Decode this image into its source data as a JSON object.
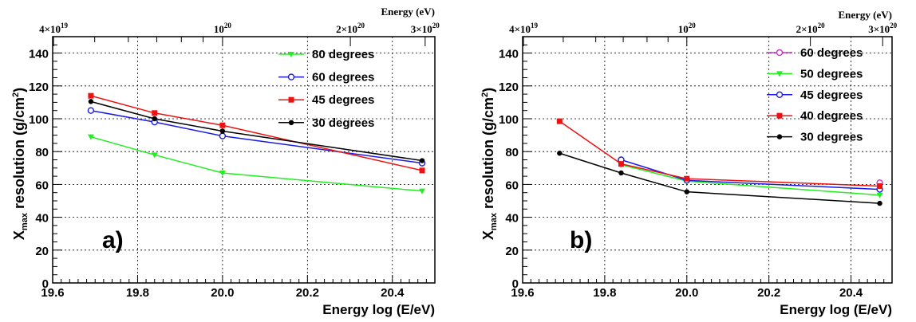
{
  "chart_data": [
    {
      "type": "line",
      "panel_label": "a)",
      "xlabel": "Energy log (E/eV)",
      "ylabel_main": "X",
      "ylabel_sub": "max",
      "ylabel_rest": " resolution (g/cm",
      "ylabel_sup": "2",
      "ylabel_end": ")",
      "top_axis_label": "Energy (eV)",
      "top_ticks": [
        {
          "x": 19.602,
          "base": "4×10",
          "exp": "19"
        },
        {
          "x": 20.0,
          "base": "10",
          "exp": "20"
        },
        {
          "x": 20.301,
          "base": "2×10",
          "exp": "20"
        },
        {
          "x": 20.477,
          "base": "3×10",
          "exp": "20"
        }
      ],
      "xlim": [
        19.6,
        20.5
      ],
      "ylim": [
        0,
        150
      ],
      "xticks": [
        "19.6",
        "19.8",
        "20.0",
        "20.2",
        "20.4"
      ],
      "yticks": [
        "0",
        "20",
        "40",
        "60",
        "80",
        "100",
        "120",
        "140"
      ],
      "grid": true,
      "legend_position": "top-right",
      "series": [
        {
          "name": "80 degrees",
          "color": "#22ee22",
          "marker": "triangle-down",
          "x": [
            19.69,
            19.84,
            20.0,
            20.47
          ],
          "y": [
            89,
            78,
            67,
            56
          ]
        },
        {
          "name": "60 degrees",
          "color": "#1a1ae6",
          "marker": "open-circle",
          "x": [
            19.69,
            19.84,
            20.0,
            20.47
          ],
          "y": [
            105,
            98,
            89.5,
            73
          ]
        },
        {
          "name": "45 degrees",
          "color": "#ee1111",
          "marker": "square",
          "x": [
            19.69,
            19.84,
            20.0,
            20.47
          ],
          "y": [
            114,
            103.5,
            96,
            68.5
          ]
        },
        {
          "name": "30 degrees",
          "color": "#000000",
          "marker": "dot",
          "x": [
            19.69,
            19.84,
            20.0,
            20.47
          ],
          "y": [
            110.5,
            100,
            92.5,
            74.5
          ]
        }
      ]
    },
    {
      "type": "line",
      "panel_label": "b)",
      "xlabel": "Energy log (E/eV)",
      "ylabel_main": "X",
      "ylabel_sub": "max",
      "ylabel_rest": " resolution (g/cm",
      "ylabel_sup": "2",
      "ylabel_end": ")",
      "top_axis_label": "Energy (eV)",
      "top_ticks": [
        {
          "x": 19.602,
          "base": "4×10",
          "exp": "19"
        },
        {
          "x": 20.0,
          "base": "10",
          "exp": "20"
        },
        {
          "x": 20.301,
          "base": "2×10",
          "exp": "20"
        },
        {
          "x": 20.477,
          "base": "3×10",
          "exp": "20"
        }
      ],
      "xlim": [
        19.6,
        20.5
      ],
      "ylim": [
        0,
        150
      ],
      "xticks": [
        "19.6",
        "19.8",
        "20.0",
        "20.2",
        "20.4"
      ],
      "yticks": [
        "0",
        "20",
        "40",
        "60",
        "80",
        "100",
        "120",
        "140"
      ],
      "grid": true,
      "legend_position": "top-right",
      "series": [
        {
          "name": "60 degrees",
          "color": "#cc33cc",
          "marker": "open-circle",
          "x": [
            20.47
          ],
          "y": [
            61
          ]
        },
        {
          "name": "50 degrees",
          "color": "#22ee22",
          "marker": "triangle-down",
          "x": [
            19.84,
            20.0,
            20.47
          ],
          "y": [
            72,
            62,
            53.5
          ]
        },
        {
          "name": "45 degrees",
          "color": "#1a1ae6",
          "marker": "open-circle",
          "x": [
            19.84,
            20.0,
            20.47
          ],
          "y": [
            75,
            62.5,
            57
          ]
        },
        {
          "name": "40 degrees",
          "color": "#ee1111",
          "marker": "square",
          "x": [
            19.69,
            19.84,
            20.0,
            20.47
          ],
          "y": [
            98.5,
            72.5,
            63.5,
            59
          ]
        },
        {
          "name": "30 degrees",
          "color": "#000000",
          "marker": "dot",
          "x": [
            19.69,
            19.84,
            20.0,
            20.47
          ],
          "y": [
            79,
            67,
            55.5,
            48.5
          ]
        }
      ]
    }
  ]
}
